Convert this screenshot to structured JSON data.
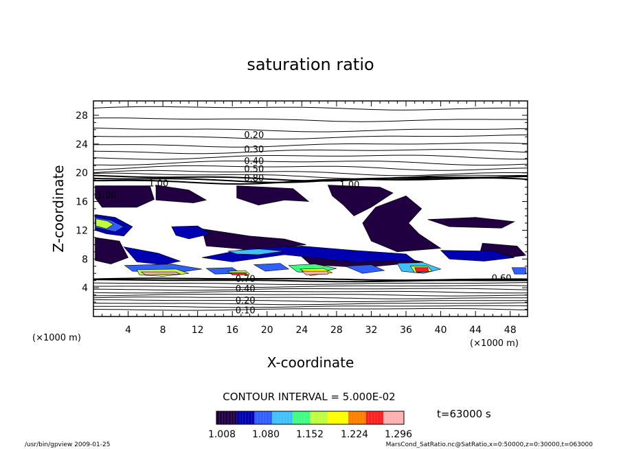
{
  "chart_data": {
    "type": "heatmap",
    "title": "saturation ratio",
    "xlabel": "X-coordinate",
    "ylabel": "Z-coordinate",
    "x_unit": "(×1000 m)",
    "z_unit": "(×1000 m)",
    "xlim": [
      0,
      50
    ],
    "ylim": [
      0,
      30
    ],
    "x_ticks": [
      4,
      8,
      12,
      16,
      20,
      24,
      28,
      32,
      36,
      40,
      44,
      48
    ],
    "y_ticks": [
      4,
      8,
      12,
      16,
      20,
      24,
      28
    ],
    "contour_interval": "CONTOUR INTERVAL = 5.000E-02",
    "time_label": "t=63000 s",
    "colorbar": {
      "ticks": [
        "1.008",
        "1.080",
        "1.152",
        "1.224",
        "1.296"
      ],
      "min": 1.008,
      "max": 1.33,
      "colors": [
        "#200040",
        "#0000b0",
        "#3060ff",
        "#40c0ff",
        "#40ff80",
        "#c0ff40",
        "#ffff00",
        "#ff8000",
        "#ff2020",
        "#ffb0b0"
      ]
    },
    "contour_labels": [
      {
        "text": "0.20",
        "x": 18.5,
        "y": 25.2
      },
      {
        "text": "0.30",
        "x": 18.5,
        "y": 23.2
      },
      {
        "text": "0.40",
        "x": 18.5,
        "y": 21.6
      },
      {
        "text": "0.50",
        "x": 18.5,
        "y": 20.5
      },
      {
        "text": "0.80",
        "x": 18.5,
        "y": 19.2
      },
      {
        "text": "1.00",
        "x": 1.5,
        "y": 16.8
      },
      {
        "text": "1.00",
        "x": 7.5,
        "y": 18.5
      },
      {
        "text": "1.00",
        "x": 29.5,
        "y": 18.3
      },
      {
        "text": "0.70",
        "x": 17.5,
        "y": 5.2
      },
      {
        "text": "0.40",
        "x": 17.5,
        "y": 3.8
      },
      {
        "text": "0.20",
        "x": 17.5,
        "y": 2.2
      },
      {
        "text": "0.10",
        "x": 17.5,
        "y": 0.8
      },
      {
        "text": "0.60",
        "x": 47.0,
        "y": 5.3
      }
    ],
    "field_regions": [
      {
        "v": 1.01,
        "pts": [
          [
            7.2,
            18.3
          ],
          [
            11,
            17.6
          ],
          [
            13,
            16.2
          ],
          [
            11.5,
            15.8
          ],
          [
            7.2,
            16.2
          ]
        ]
      },
      {
        "v": 1.01,
        "pts": [
          [
            16.5,
            18.2
          ],
          [
            23,
            17.8
          ],
          [
            24.8,
            16
          ],
          [
            22,
            16.2
          ],
          [
            19,
            15.5
          ],
          [
            16.5,
            16.5
          ]
        ]
      },
      {
        "v": 1.01,
        "pts": [
          [
            27,
            18.3
          ],
          [
            33,
            18
          ],
          [
            34.5,
            17.2
          ],
          [
            32,
            15.2
          ],
          [
            30,
            14
          ],
          [
            28.8,
            15.5
          ],
          [
            27.5,
            16.8
          ]
        ]
      },
      {
        "v": 1.01,
        "pts": [
          [
            32.5,
            15.2
          ],
          [
            36,
            16.8
          ],
          [
            37.8,
            15
          ],
          [
            36.3,
            13
          ],
          [
            37.5,
            11.5
          ],
          [
            40,
            9.5
          ],
          [
            35,
            9
          ],
          [
            32,
            10.5
          ],
          [
            31,
            13
          ]
        ]
      },
      {
        "v": 1.01,
        "pts": [
          [
            0.2,
            18.2
          ],
          [
            6.5,
            18.2
          ],
          [
            7,
            16.3
          ],
          [
            5,
            15.2
          ],
          [
            1,
            15.2
          ],
          [
            0.2,
            16.5
          ]
        ]
      },
      {
        "v": 1.01,
        "pts": [
          [
            0.2,
            11
          ],
          [
            3,
            10.5
          ],
          [
            4,
            8.2
          ],
          [
            2,
            7.3
          ],
          [
            0.2,
            7.8
          ]
        ]
      },
      {
        "v": 1.01,
        "pts": [
          [
            12.5,
            12.2
          ],
          [
            18,
            11.2
          ],
          [
            22,
            10.8
          ],
          [
            24.5,
            10
          ],
          [
            19,
            9.2
          ],
          [
            13,
            9.8
          ]
        ]
      },
      {
        "v": 1.01,
        "pts": [
          [
            44.8,
            10.2
          ],
          [
            48.8,
            9.8
          ],
          [
            49.8,
            8.5
          ],
          [
            46,
            8
          ],
          [
            44.5,
            8.8
          ]
        ]
      },
      {
        "v": 1.01,
        "pts": [
          [
            38.5,
            13.5
          ],
          [
            44,
            13.8
          ],
          [
            48.5,
            13.2
          ],
          [
            47,
            12.3
          ],
          [
            41,
            12.5
          ]
        ]
      },
      {
        "v": 1.01,
        "pts": [
          [
            24,
            8.3
          ],
          [
            34,
            8.5
          ],
          [
            38,
            7.6
          ],
          [
            31,
            6.8
          ],
          [
            25,
            7.2
          ]
        ]
      },
      {
        "v": 1.05,
        "pts": [
          [
            0.2,
            14.2
          ],
          [
            2.5,
            13.8
          ],
          [
            4.5,
            12.5
          ],
          [
            3.5,
            11.2
          ],
          [
            1.5,
            11.5
          ],
          [
            0.2,
            12
          ]
        ]
      },
      {
        "v": 1.05,
        "pts": [
          [
            9,
            12.5
          ],
          [
            12,
            12.6
          ],
          [
            13.5,
            11.5
          ],
          [
            11,
            10.8
          ],
          [
            9.5,
            11.3
          ]
        ]
      },
      {
        "v": 1.05,
        "pts": [
          [
            3.5,
            9.7
          ],
          [
            7.5,
            8.8
          ],
          [
            10,
            7.7
          ],
          [
            8,
            7.2
          ],
          [
            5,
            7.6
          ]
        ]
      },
      {
        "v": 1.07,
        "pts": [
          [
            12.5,
            8.2
          ],
          [
            18,
            9.5
          ],
          [
            24,
            9.8
          ],
          [
            30,
            9.2
          ],
          [
            36,
            8.7
          ],
          [
            37,
            7.8
          ],
          [
            30,
            7.6
          ],
          [
            22,
            8.6
          ],
          [
            16,
            7.6
          ]
        ]
      },
      {
        "v": 1.05,
        "pts": [
          [
            40,
            9.2
          ],
          [
            46,
            9.1
          ],
          [
            48.5,
            8.2
          ],
          [
            45,
            7.7
          ],
          [
            41,
            8
          ]
        ]
      },
      {
        "v": 1.1,
        "pts": [
          [
            0.2,
            13.8
          ],
          [
            2,
            13.4
          ],
          [
            3.5,
            12.5
          ],
          [
            2.5,
            11.8
          ],
          [
            0.2,
            12.4
          ]
        ]
      },
      {
        "v": 1.12,
        "pts": [
          [
            15.5,
            9.1
          ],
          [
            19,
            9.4
          ],
          [
            22,
            9.1
          ],
          [
            19,
            8.6
          ],
          [
            16.5,
            8.7
          ]
        ]
      },
      {
        "v": 1.1,
        "pts": [
          [
            3.6,
            7.1
          ],
          [
            9,
            7.3
          ],
          [
            12.5,
            6.6
          ],
          [
            9.5,
            6.1
          ],
          [
            4.5,
            6.3
          ]
        ]
      },
      {
        "v": 1.1,
        "pts": [
          [
            13,
            6.7
          ],
          [
            16,
            6.8
          ],
          [
            17,
            6
          ],
          [
            14,
            5.9
          ]
        ]
      },
      {
        "v": 1.1,
        "pts": [
          [
            18.5,
            7.2
          ],
          [
            21.5,
            7.4
          ],
          [
            22.5,
            6.6
          ],
          [
            19.8,
            6.3
          ]
        ]
      },
      {
        "v": 1.15,
        "pts": [
          [
            22.5,
            7.1
          ],
          [
            25.5,
            7.3
          ],
          [
            28,
            6.7
          ],
          [
            26,
            6.1
          ],
          [
            23.5,
            6.2
          ]
        ]
      },
      {
        "v": 1.1,
        "pts": [
          [
            29,
            7
          ],
          [
            32,
            7.2
          ],
          [
            33.5,
            6.4
          ],
          [
            31,
            6
          ]
        ]
      },
      {
        "v": 1.12,
        "pts": [
          [
            35,
            7.4
          ],
          [
            38,
            7.5
          ],
          [
            40,
            6.6
          ],
          [
            38,
            6
          ],
          [
            35.5,
            6.3
          ]
        ]
      },
      {
        "v": 1.1,
        "pts": [
          [
            48.2,
            6.8
          ],
          [
            49.8,
            6.8
          ],
          [
            49.8,
            5.9
          ],
          [
            48.5,
            5.9
          ]
        ]
      },
      {
        "v": 1.2,
        "pts": [
          [
            0.3,
            13.6
          ],
          [
            1.6,
            13.3
          ],
          [
            2.3,
            12.8
          ],
          [
            1.5,
            12.2
          ],
          [
            0.3,
            12.6
          ]
        ]
      },
      {
        "v": 1.2,
        "pts": [
          [
            5,
            6.5
          ],
          [
            9.5,
            6.6
          ],
          [
            11,
            6
          ],
          [
            8,
            5.6
          ],
          [
            5.3,
            5.8
          ]
        ]
      },
      {
        "v": 1.22,
        "pts": [
          [
            23.8,
            6.6
          ],
          [
            26.5,
            6.7
          ],
          [
            27.5,
            6.1
          ],
          [
            25,
            5.7
          ]
        ]
      },
      {
        "v": 1.2,
        "pts": [
          [
            15.5,
            6.3
          ],
          [
            17.5,
            6.4
          ],
          [
            18,
            5.9
          ],
          [
            16,
            5.8
          ]
        ]
      },
      {
        "v": 1.2,
        "pts": [
          [
            36.5,
            7
          ],
          [
            38.5,
            7
          ],
          [
            39,
            6.3
          ],
          [
            37,
            6.1
          ]
        ]
      },
      {
        "v": 1.3,
        "pts": [
          [
            5.5,
            6.2
          ],
          [
            9.5,
            6.2
          ],
          [
            10,
            5.9
          ],
          [
            6,
            5.8
          ]
        ]
      },
      {
        "v": 1.3,
        "pts": [
          [
            24,
            6.3
          ],
          [
            27,
            6.3
          ],
          [
            27,
            5.9
          ],
          [
            24.5,
            5.8
          ]
        ]
      },
      {
        "v": 1.28,
        "pts": [
          [
            15.8,
            6.1
          ],
          [
            17.6,
            6.1
          ],
          [
            17.6,
            5.8
          ],
          [
            16,
            5.8
          ]
        ]
      },
      {
        "v": 1.28,
        "pts": [
          [
            37,
            6.8
          ],
          [
            38.5,
            6.8
          ],
          [
            38.6,
            6.2
          ],
          [
            37.2,
            6.2
          ]
        ]
      }
    ]
  },
  "footer": {
    "left": "/usr/bin/gpview   2009-01-25",
    "right": "MarsCond_SatRatio.nc@SatRatio,x=0:50000,z=0:30000,t=063000"
  }
}
